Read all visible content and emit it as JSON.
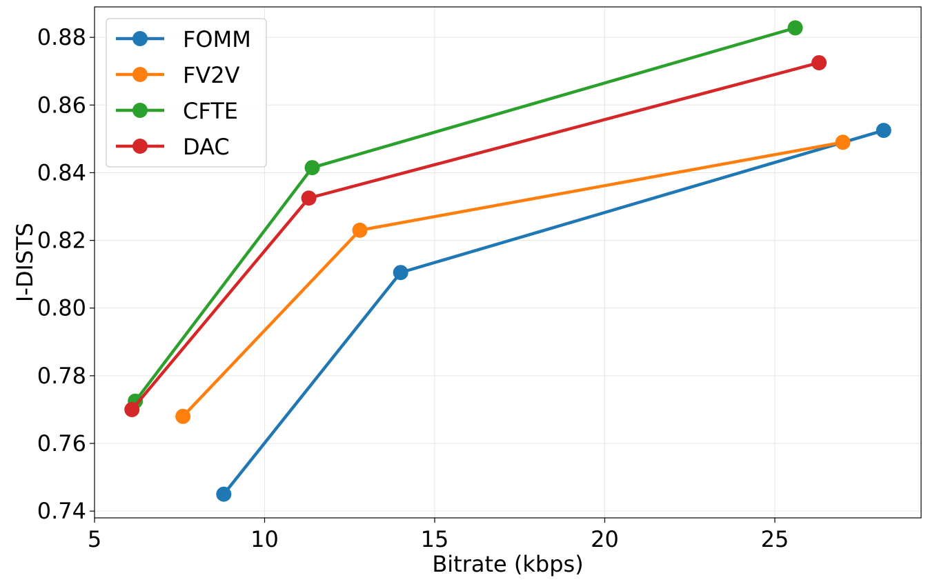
{
  "chart_data": {
    "type": "line",
    "xlabel": "Bitrate (kbps)",
    "ylabel": "I-DISTS",
    "xlim": [
      5,
      29.3
    ],
    "ylim": [
      0.738,
      0.889
    ],
    "xticks": [
      5,
      10,
      15,
      20,
      25
    ],
    "yticks": [
      0.74,
      0.76,
      0.78,
      0.8,
      0.82,
      0.84,
      0.86,
      0.88
    ],
    "ytick_labels": [
      "0.74",
      "0.76",
      "0.78",
      "0.80",
      "0.82",
      "0.84",
      "0.86",
      "0.88"
    ],
    "grid": true,
    "legend_position": "top-left",
    "series": [
      {
        "name": "FOMM",
        "color": "#1f77b4",
        "x": [
          8.8,
          14.0,
          28.2
        ],
        "y": [
          0.745,
          0.8105,
          0.8525
        ]
      },
      {
        "name": "FV2V",
        "color": "#ff7f0e",
        "x": [
          7.6,
          12.8,
          27.0
        ],
        "y": [
          0.768,
          0.823,
          0.849
        ]
      },
      {
        "name": "CFTE",
        "color": "#2ca02c",
        "x": [
          6.2,
          11.4,
          25.6
        ],
        "y": [
          0.7725,
          0.8415,
          0.8828
        ]
      },
      {
        "name": "DAC",
        "color": "#d62728",
        "x": [
          6.1,
          11.3,
          26.3
        ],
        "y": [
          0.77,
          0.8325,
          0.8725
        ]
      }
    ]
  }
}
